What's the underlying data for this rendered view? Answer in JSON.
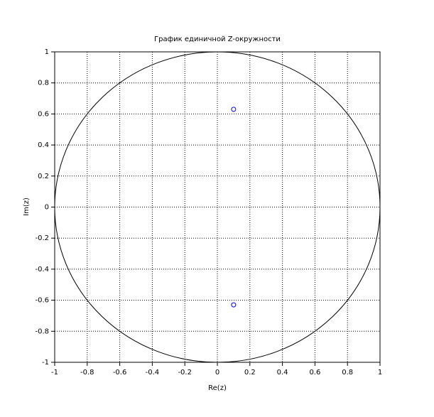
{
  "chart_data": {
    "type": "scatter",
    "title": "График единичной Z-окружности",
    "x_label": "Re(z)",
    "y_label": "Im(z)",
    "x": [
      0.1,
      0.1
    ],
    "values": [
      0.63,
      -0.63
    ],
    "color": "#0000ff",
    "xlim": [
      -1,
      1
    ],
    "ylim": [
      -1,
      1
    ],
    "xticks": [
      -1,
      -0.8,
      -0.6,
      -0.4,
      -0.2,
      0,
      0.2,
      0.4,
      0.6,
      0.8,
      1
    ],
    "yticks": [
      -1,
      -0.8,
      -0.6,
      -0.4,
      -0.2,
      0,
      0.2,
      0.4,
      0.6,
      0.8,
      1
    ],
    "grid": true
  }
}
